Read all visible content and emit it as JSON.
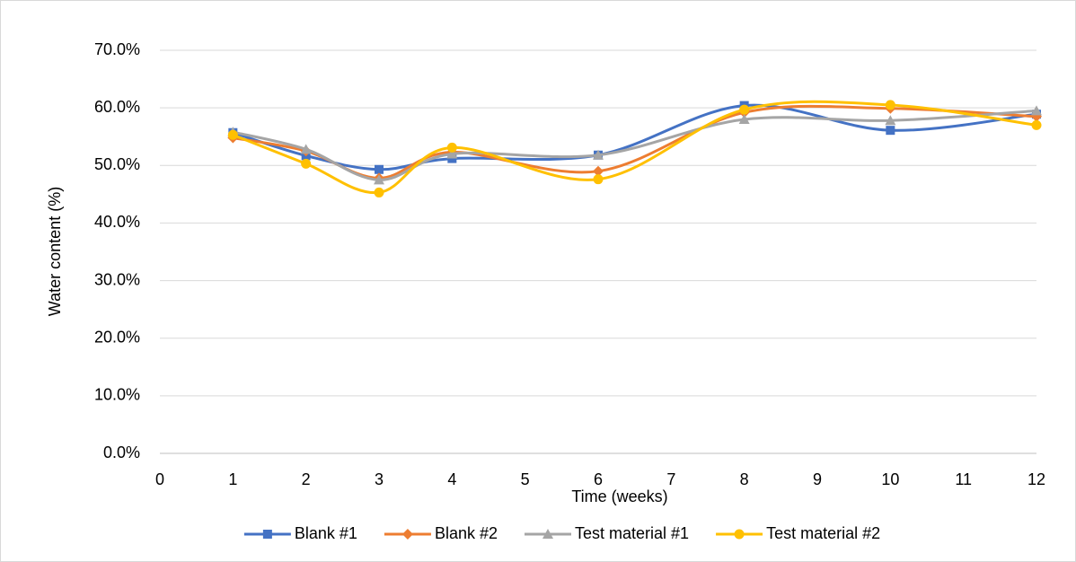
{
  "chart_data": {
    "type": "line",
    "x_label": "Time (weeks)",
    "y_label": "Water content (%)",
    "x": [
      1,
      2,
      3,
      4,
      6,
      8,
      10,
      12
    ],
    "xlim": [
      0,
      12
    ],
    "xticks": [
      0,
      1,
      2,
      3,
      4,
      5,
      6,
      7,
      8,
      9,
      10,
      11,
      12
    ],
    "ylim": [
      0,
      70
    ],
    "yticks": [
      {
        "value": 0,
        "label": "0.0%"
      },
      {
        "value": 10,
        "label": "10.0%"
      },
      {
        "value": 20,
        "label": "20.0%"
      },
      {
        "value": 30,
        "label": "30.0%"
      },
      {
        "value": 40,
        "label": "40.0%"
      },
      {
        "value": 50,
        "label": "50.0%"
      },
      {
        "value": 60,
        "label": "60.0%"
      },
      {
        "value": 70,
        "label": "70.0%"
      }
    ],
    "grid": true,
    "smooth": true,
    "legend": "bottom",
    "series": [
      {
        "name": "Blank #1",
        "color": "#4472c4",
        "marker": "square",
        "values": [
          55.7,
          51.7,
          49.3,
          51.2,
          51.8,
          60.4,
          56.1,
          58.9
        ]
      },
      {
        "name": "Blank #2",
        "color": "#ed7d31",
        "marker": "diamond",
        "values": [
          54.8,
          52.5,
          47.8,
          52.3,
          49.0,
          59.2,
          59.9,
          58.5
        ]
      },
      {
        "name": "Test material #1",
        "color": "#a5a5a5",
        "marker": "triangle",
        "values": [
          55.8,
          52.8,
          47.5,
          52.0,
          51.8,
          58.0,
          57.8,
          59.5
        ]
      },
      {
        "name": "Test material #2",
        "color": "#ffc000",
        "marker": "circle",
        "values": [
          55.3,
          50.3,
          45.3,
          53.1,
          47.6,
          59.7,
          60.5,
          57.0
        ]
      }
    ]
  }
}
